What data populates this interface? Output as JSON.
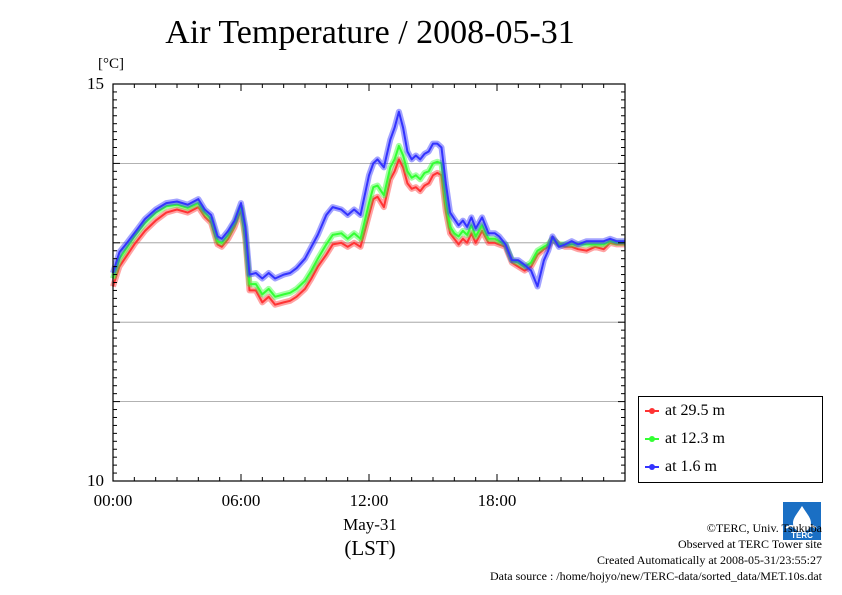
{
  "chart_data": {
    "type": "line",
    "title": "Air Temperature / 2008-05-31",
    "ylabel": "[°C]",
    "xlabel": "May-31",
    "xlabel2": "(LST)",
    "xlim": [
      0,
      24
    ],
    "ylim": [
      10,
      15
    ],
    "y_ticks": [
      {
        "value": 10,
        "label": "10"
      },
      {
        "value": 15,
        "label": "15"
      }
    ],
    "y_gridlines": [
      11,
      12,
      13,
      14
    ],
    "x_ticks": [
      {
        "value": 0,
        "label": "00:00"
      },
      {
        "value": 6,
        "label": "06:00"
      },
      {
        "value": 12,
        "label": "12:00"
      },
      {
        "value": 18,
        "label": "18:00"
      }
    ],
    "grid": true,
    "legend_position": "bottom-right-outside",
    "series": [
      {
        "name": "at 29.5 m",
        "color": "#ff3333",
        "x": [
          0,
          0.3,
          0.6,
          1,
          1.5,
          2,
          2.5,
          3,
          3.5,
          4,
          4.3,
          4.6,
          4.9,
          5.1,
          5.4,
          5.7,
          6,
          6.2,
          6.4,
          6.7,
          7,
          7.3,
          7.6,
          8,
          8.3,
          8.6,
          9,
          9.3,
          9.6,
          10,
          10.3,
          10.7,
          11,
          11.3,
          11.6,
          12,
          12.2,
          12.4,
          12.7,
          13,
          13.2,
          13.4,
          13.6,
          13.8,
          14,
          14.2,
          14.4,
          14.6,
          14.8,
          15,
          15.2,
          15.4,
          15.6,
          15.8,
          16,
          16.2,
          16.4,
          16.6,
          16.8,
          17,
          17.3,
          17.6,
          17.9,
          18.1,
          18.4,
          18.7,
          19,
          19.3,
          19.6,
          19.9,
          20.2,
          20.4,
          20.6,
          20.9,
          21.2,
          21.5,
          21.8,
          22.2,
          22.6,
          23,
          23.3,
          23.6,
          24
        ],
        "values": [
          12.45,
          12.7,
          12.82,
          12.98,
          13.15,
          13.28,
          13.38,
          13.42,
          13.38,
          13.45,
          13.33,
          13.25,
          12.98,
          12.95,
          13.05,
          13.2,
          13.42,
          13.05,
          12.4,
          12.4,
          12.25,
          12.32,
          12.22,
          12.25,
          12.27,
          12.32,
          12.42,
          12.55,
          12.7,
          12.85,
          12.98,
          13.0,
          12.95,
          13.0,
          12.95,
          13.35,
          13.55,
          13.58,
          13.45,
          13.8,
          13.9,
          14.05,
          13.95,
          13.75,
          13.68,
          13.7,
          13.65,
          13.72,
          13.75,
          13.85,
          13.88,
          13.85,
          13.4,
          13.12,
          13.05,
          12.98,
          13.05,
          13.0,
          13.12,
          13.0,
          13.15,
          13.0,
          13.0,
          12.98,
          12.95,
          12.75,
          12.7,
          12.65,
          12.7,
          12.85,
          12.92,
          12.95,
          13.05,
          12.98,
          12.95,
          12.95,
          12.92,
          12.9,
          12.95,
          12.92,
          13.0,
          12.98,
          12.98
        ]
      },
      {
        "name": "at 12.3 m",
        "color": "#33ff33",
        "x": [
          0,
          0.3,
          0.6,
          1,
          1.5,
          2,
          2.5,
          3,
          3.5,
          4,
          4.3,
          4.6,
          4.9,
          5.1,
          5.4,
          5.7,
          6,
          6.2,
          6.4,
          6.7,
          7,
          7.3,
          7.6,
          8,
          8.3,
          8.6,
          9,
          9.3,
          9.6,
          10,
          10.3,
          10.7,
          11,
          11.3,
          11.6,
          12,
          12.2,
          12.4,
          12.7,
          13,
          13.2,
          13.4,
          13.6,
          13.8,
          14,
          14.2,
          14.4,
          14.6,
          14.8,
          15,
          15.2,
          15.4,
          15.6,
          15.8,
          16,
          16.2,
          16.4,
          16.6,
          16.8,
          17,
          17.3,
          17.6,
          17.9,
          18.1,
          18.4,
          18.7,
          19,
          19.3,
          19.6,
          19.9,
          20.2,
          20.4,
          20.6,
          20.9,
          21.2,
          21.5,
          21.8,
          22.2,
          22.6,
          23,
          23.3,
          23.6,
          24
        ],
        "values": [
          12.55,
          12.8,
          12.92,
          13.08,
          13.25,
          13.38,
          13.46,
          13.48,
          13.44,
          13.5,
          13.38,
          13.3,
          13.02,
          13.0,
          13.1,
          13.25,
          13.45,
          13.1,
          12.48,
          12.48,
          12.35,
          12.42,
          12.32,
          12.35,
          12.37,
          12.42,
          12.52,
          12.65,
          12.8,
          12.98,
          13.1,
          13.12,
          13.05,
          13.12,
          13.05,
          13.5,
          13.7,
          13.72,
          13.6,
          13.95,
          14.05,
          14.22,
          14.1,
          13.9,
          13.82,
          13.85,
          13.8,
          13.88,
          13.9,
          14.0,
          14.02,
          14.0,
          13.52,
          13.2,
          13.12,
          13.08,
          13.15,
          13.1,
          13.22,
          13.08,
          13.22,
          13.05,
          13.05,
          13.02,
          12.98,
          12.78,
          12.75,
          12.7,
          12.75,
          12.9,
          12.95,
          12.98,
          13.05,
          12.98,
          12.98,
          12.98,
          12.98,
          12.98,
          12.98,
          12.98,
          13.02,
          13.0,
          13.0
        ]
      },
      {
        "name": "at 1.6 m",
        "color": "#3333ff",
        "x": [
          0,
          0.3,
          0.6,
          1,
          1.5,
          2,
          2.5,
          3,
          3.5,
          4,
          4.3,
          4.6,
          4.9,
          5.1,
          5.4,
          5.7,
          6,
          6.2,
          6.4,
          6.7,
          7,
          7.3,
          7.6,
          8,
          8.3,
          8.6,
          9,
          9.3,
          9.6,
          10,
          10.3,
          10.7,
          11,
          11.3,
          11.6,
          12,
          12.2,
          12.4,
          12.7,
          13,
          13.2,
          13.4,
          13.6,
          13.8,
          14,
          14.2,
          14.4,
          14.6,
          14.8,
          15,
          15.2,
          15.4,
          15.6,
          15.8,
          16,
          16.2,
          16.4,
          16.6,
          16.8,
          17,
          17.3,
          17.6,
          17.9,
          18.1,
          18.4,
          18.7,
          19,
          19.3,
          19.6,
          19.9,
          20.2,
          20.4,
          20.6,
          20.9,
          21.2,
          21.5,
          21.8,
          22.2,
          22.6,
          23,
          23.3,
          23.6,
          24
        ],
        "values": [
          12.62,
          12.88,
          12.98,
          13.12,
          13.3,
          13.42,
          13.5,
          13.52,
          13.48,
          13.55,
          13.42,
          13.35,
          13.08,
          13.05,
          13.15,
          13.28,
          13.5,
          13.2,
          12.6,
          12.62,
          12.55,
          12.62,
          12.55,
          12.6,
          12.62,
          12.68,
          12.8,
          12.95,
          13.1,
          13.35,
          13.45,
          13.42,
          13.35,
          13.42,
          13.35,
          13.85,
          14.0,
          14.05,
          13.95,
          14.3,
          14.45,
          14.65,
          14.45,
          14.15,
          14.05,
          14.1,
          14.05,
          14.12,
          14.15,
          14.25,
          14.25,
          14.2,
          13.75,
          13.38,
          13.3,
          13.22,
          13.28,
          13.2,
          13.32,
          13.18,
          13.32,
          13.12,
          13.12,
          13.08,
          12.98,
          12.78,
          12.78,
          12.72,
          12.65,
          12.45,
          12.78,
          12.9,
          13.08,
          12.95,
          12.98,
          13.02,
          12.98,
          13.02,
          13.02,
          13.02,
          13.05,
          13.02,
          13.02
        ]
      }
    ]
  },
  "credits": {
    "copyright": "©TERC, Univ. Tsukuba",
    "observed": "Observed at TERC Tower site",
    "created": "Created Automatically at 2008-05-31/23:55:27",
    "source": "Data source : /home/hojyo/new/TERC-data/sorted_data/MET.10s.dat"
  },
  "logo": {
    "text": "TERC",
    "color": "#1a6fc4"
  }
}
